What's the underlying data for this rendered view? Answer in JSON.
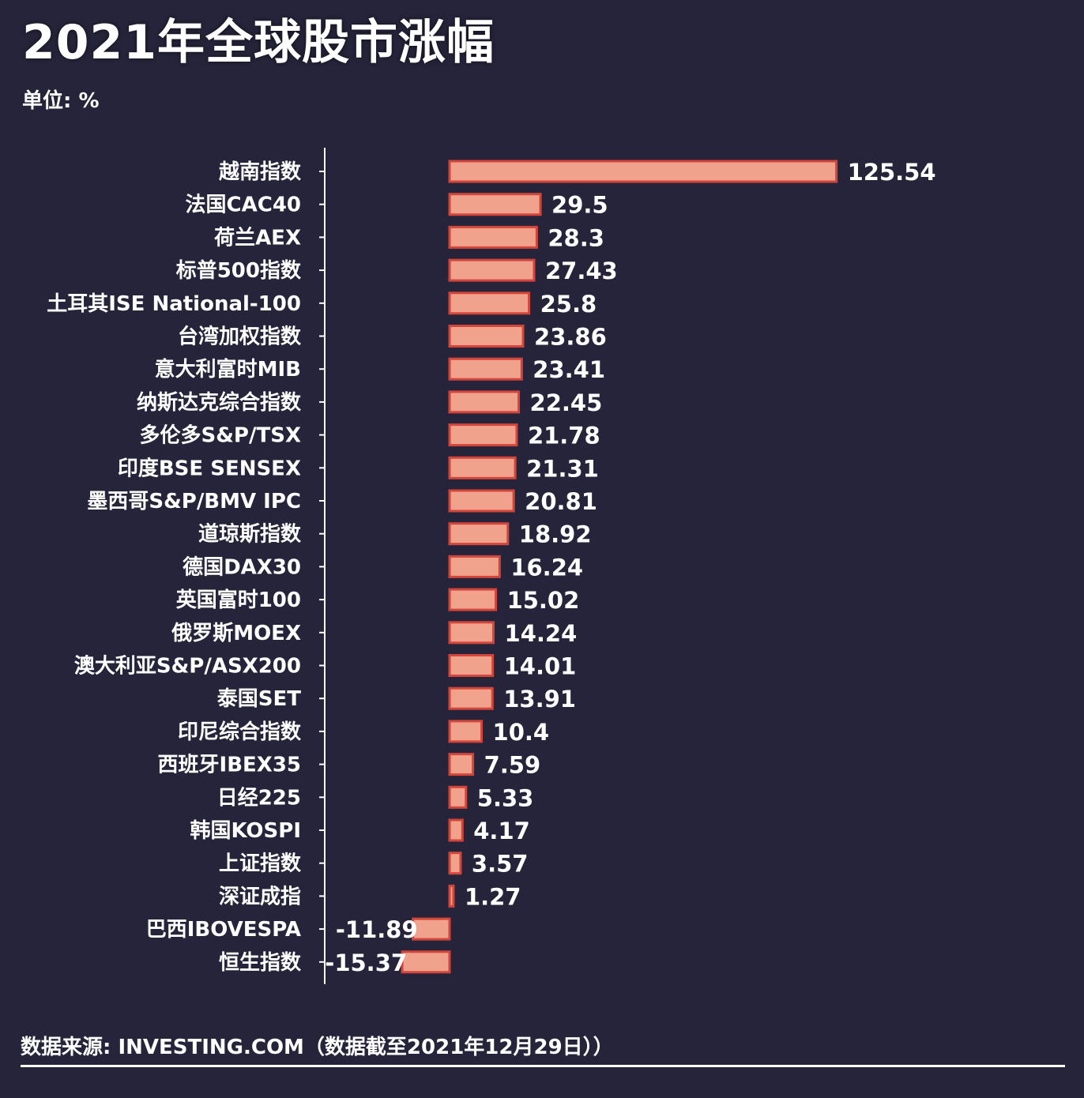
{
  "header": {
    "title": "2021年全球股市涨幅",
    "unit": "单位: %"
  },
  "footer": {
    "source": "数据来源: INVESTING.COM（数据截至2021年12月29日））"
  },
  "colors": {
    "background": "#25243a",
    "bar_fill": "#f0a28c",
    "bar_stroke": "#d3443a",
    "axis": "#ffffff",
    "text": "#ffffff"
  },
  "chart_data": {
    "type": "bar",
    "orientation": "horizontal",
    "title": "2021年全球股市涨幅",
    "unit": "%",
    "categories": [
      "越南指数",
      "法国CAC40",
      "荷兰AEX",
      "标普500指数",
      "土耳其ISE National-100",
      "台湾加权指数",
      "意大利富时MIB",
      "纳斯达克综合指数",
      "多伦多S&P/TSX",
      "印度BSE SENSEX",
      "墨西哥S&P/BMV IPC",
      "道琼斯指数",
      "德国DAX30",
      "英国富时100",
      "俄罗斯MOEX",
      "澳大利亚S&P/ASX200",
      "泰国SET",
      "印尼综合指数",
      "西班牙IBEX35",
      "日经225",
      "韩国KOSPI",
      "上证指数",
      "深证成指",
      "巴西IBOVESPA",
      "恒生指数"
    ],
    "values": [
      125.54,
      29.5,
      28.3,
      27.43,
      25.8,
      23.86,
      23.41,
      22.45,
      21.78,
      21.31,
      20.81,
      18.92,
      16.24,
      15.02,
      14.24,
      14.01,
      13.91,
      10.4,
      7.59,
      5.33,
      4.17,
      3.57,
      1.27,
      -11.89,
      -15.37
    ],
    "value_labels": [
      "125.54",
      "29.5",
      "28.3",
      "27.43",
      "25.8",
      "23.86",
      "23.41",
      "22.45",
      "21.78",
      "21.31",
      "20.81",
      "18.92",
      "16.24",
      "15.02",
      "14.24",
      "14.01",
      "13.91",
      "10.4",
      "7.59",
      "5.33",
      "4.17",
      "3.57",
      "1.27",
      "-11.89",
      "-15.37"
    ],
    "grid": false,
    "legend": "none"
  }
}
